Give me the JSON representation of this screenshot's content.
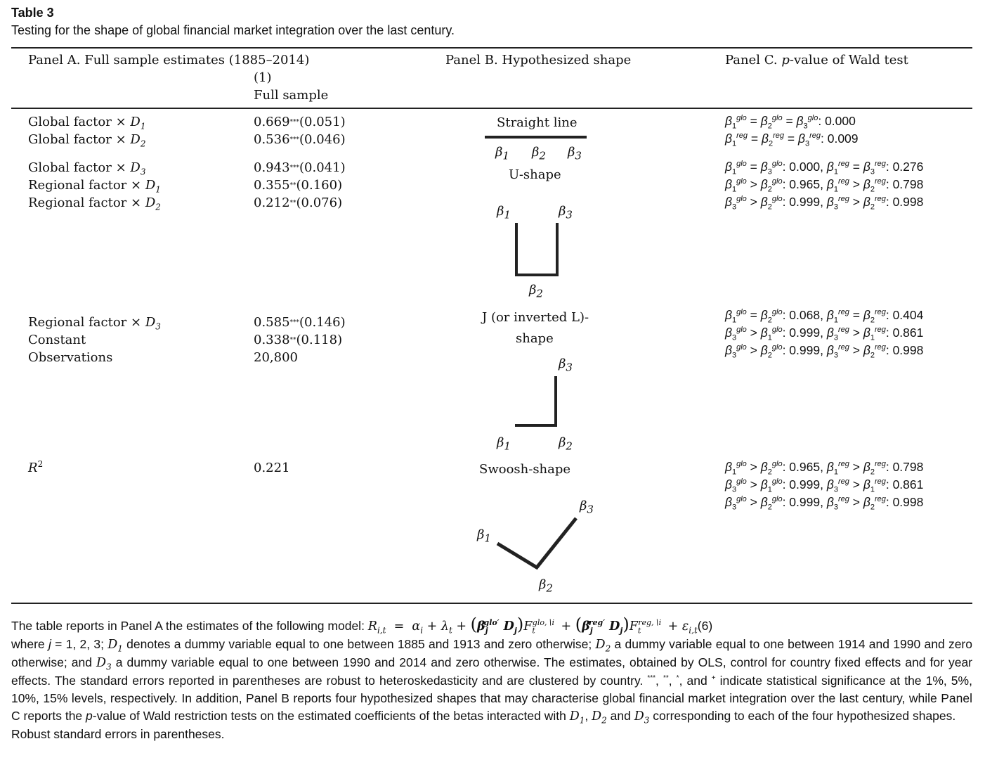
{
  "table": {
    "label": "Table 3",
    "caption": "Testing for the shape of global financial market integration over the last century."
  },
  "headers": {
    "panel_a": "Panel A. Full sample estimates (1885–2014)",
    "col_number": "(1)",
    "col_name": "Full sample",
    "panel_b": "Panel B. Hypothesized shape",
    "panel_c_prefix": "Panel C. ",
    "panel_c_p": "p",
    "panel_c_suffix": "-value of Wald test"
  },
  "rows": [
    {
      "label": "Global factor × ",
      "dvar": "D",
      "dsub": "1",
      "coef": "0.669",
      "stars": "***",
      "se": "(0.051)"
    },
    {
      "label": "Global factor × ",
      "dvar": "D",
      "dsub": "2",
      "coef": "0.536",
      "stars": "***",
      "se": "(0.046)"
    },
    {
      "label": "Global factor × ",
      "dvar": "D",
      "dsub": "3",
      "coef": "0.943",
      "stars": "***",
      "se": "(0.041)"
    },
    {
      "label": "Regional factor × ",
      "dvar": "D",
      "dsub": "1",
      "coef": "0.355",
      "stars": "**",
      "se": "(0.160)"
    },
    {
      "label": "Regional factor × ",
      "dvar": "D",
      "dsub": "2",
      "coef": "0.212",
      "stars": "**",
      "se": "(0.076)"
    },
    {
      "label": "Regional factor × ",
      "dvar": "D",
      "dsub": "3",
      "coef": "0.585",
      "stars": "***",
      "se": "(0.146)"
    },
    {
      "label": "Constant",
      "coef": "0.338",
      "stars": "**",
      "se": "(0.118)"
    },
    {
      "label": "Observations",
      "coef": "20,800"
    },
    {
      "label": "R",
      "label_sup": "2",
      "coef": "0.221"
    }
  ],
  "shapes": {
    "straight": "Straight line",
    "ushape": "U-shape",
    "jshape_line1": "J (or inverted L)-",
    "jshape_line2": "shape",
    "swoosh": "Swoosh-shape",
    "beta": "β",
    "b1": "1",
    "b2": "2",
    "b3": "3"
  },
  "wald": {
    "straight": [
      {
        "text": "β1glo = β2glo = β3glo: 0.000"
      },
      {
        "text": "β1reg = β2reg = β3reg: 0.009"
      }
    ],
    "ushape": [
      "β1glo = β3glo: 0.000, β1reg = β3reg: 0.276",
      "β1glo > β2glo: 0.965, β1reg > β2reg: 0.798",
      "β3glo > β2glo: 0.999, β3reg > β2reg: 0.998"
    ],
    "jshape": [
      "β1glo = β2glo: 0.068, β1reg = β2reg: 0.404",
      "β3glo > β1glo: 0.999, β3reg > β1reg: 0.861",
      "β3glo > β2glo: 0.999, β3reg > β2reg: 0.998"
    ],
    "swoosh": [
      "β1glo > β2glo: 0.965, β1reg > β2reg: 0.798",
      "β3glo > β1glo: 0.999, β3reg > β1reg: 0.861",
      "β3glo > β2glo: 0.999, β3reg > β2reg: 0.998"
    ]
  },
  "note": {
    "p1_intro": "The table reports in Panel A the estimates of the following model: ",
    "eq_number": "(6)",
    "p1_rest": "where j = 1, 2, 3; D1 denotes a dummy variable equal to one between 1885 and 1913 and zero otherwise; D2 a dummy variable equal to one between 1914 and 1990 and zero otherwise; and D3 a dummy variable equal to one between 1990 and 2014 and zero otherwise. The estimates, obtained by OLS, control for country fixed effects and for year effects. The standard errors reported in parentheses are robust to heteroskedasticity and are clustered by country. ***, **, *, and + indicate statistical significance at the 1%, 5%, 10%, 15% levels, respectively. In addition, Panel B reports four hypothesized shapes that may characterise global financial market integration over the last century, while Panel C reports the p-value of Wald restriction tests on the estimated coefficients of the betas interacted with D1, D2 and D3 corresponding to each of the four hypothesized shapes.",
    "p2": "Robust standard errors in parentheses."
  }
}
